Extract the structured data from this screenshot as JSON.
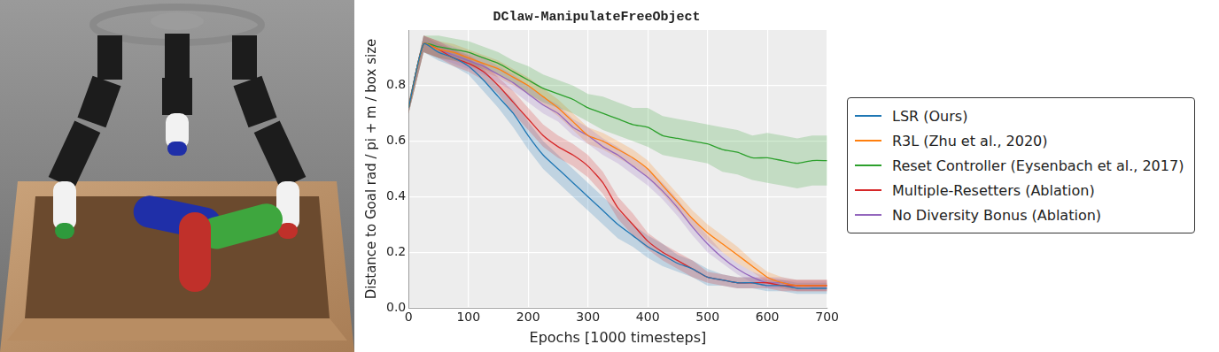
{
  "chart_data": {
    "type": "line",
    "title": "DClaw-ManipulateFreeObject",
    "x_label": "Epochs [1000 timesteps]",
    "y_label": "Distance to Goal rad / pi + m / box size",
    "x": [
      0,
      25,
      50,
      75,
      100,
      125,
      150,
      175,
      200,
      225,
      250,
      275,
      300,
      325,
      350,
      375,
      400,
      425,
      450,
      475,
      500,
      525,
      550,
      575,
      600,
      625,
      650,
      675,
      700
    ],
    "xlim": [
      0,
      700
    ],
    "xticks": [
      0,
      100,
      200,
      300,
      400,
      500,
      600,
      700
    ],
    "ylim": [
      0,
      1.0
    ],
    "yticks": [
      {
        "value": 0,
        "label": "0.0"
      },
      {
        "value": 0.2,
        "label": "0.2"
      },
      {
        "value": 0.4,
        "label": "0.4"
      },
      {
        "value": 0.6,
        "label": "0.6"
      },
      {
        "value": 0.8,
        "label": "0.8"
      }
    ],
    "grid": true,
    "legend": "right",
    "series": [
      {
        "name": "LSR (Ours)",
        "color": "#1f77b4",
        "values": [
          0.72,
          0.95,
          0.92,
          0.9,
          0.87,
          0.82,
          0.76,
          0.7,
          0.62,
          0.55,
          0.5,
          0.45,
          0.4,
          0.35,
          0.3,
          0.26,
          0.22,
          0.19,
          0.16,
          0.14,
          0.11,
          0.1,
          0.09,
          0.09,
          0.08,
          0.08,
          0.07,
          0.07,
          0.07
        ],
        "error": [
          0.02,
          0.03,
          0.03,
          0.03,
          0.03,
          0.04,
          0.04,
          0.05,
          0.05,
          0.05,
          0.05,
          0.05,
          0.05,
          0.05,
          0.05,
          0.04,
          0.04,
          0.04,
          0.03,
          0.03,
          0.03,
          0.02,
          0.02,
          0.02,
          0.02,
          0.02,
          0.02,
          0.02,
          0.02
        ]
      },
      {
        "name": "R3L (Zhu et al., 2020)",
        "color": "#ff7f0e",
        "values": [
          0.72,
          0.95,
          0.93,
          0.92,
          0.9,
          0.88,
          0.86,
          0.83,
          0.8,
          0.76,
          0.72,
          0.67,
          0.62,
          0.6,
          0.57,
          0.54,
          0.5,
          0.44,
          0.38,
          0.32,
          0.27,
          0.23,
          0.19,
          0.15,
          0.11,
          0.09,
          0.08,
          0.08,
          0.08
        ],
        "error": [
          0.02,
          0.03,
          0.03,
          0.03,
          0.03,
          0.03,
          0.03,
          0.03,
          0.03,
          0.03,
          0.03,
          0.03,
          0.03,
          0.03,
          0.03,
          0.03,
          0.03,
          0.03,
          0.03,
          0.03,
          0.03,
          0.03,
          0.03,
          0.02,
          0.02,
          0.02,
          0.02,
          0.02,
          0.02
        ]
      },
      {
        "name": "Reset Controller (Eysenbach et al., 2017)",
        "color": "#2ca02c",
        "values": [
          0.72,
          0.95,
          0.94,
          0.93,
          0.92,
          0.9,
          0.88,
          0.85,
          0.82,
          0.79,
          0.77,
          0.75,
          0.72,
          0.7,
          0.68,
          0.66,
          0.65,
          0.62,
          0.61,
          0.6,
          0.59,
          0.57,
          0.56,
          0.54,
          0.54,
          0.53,
          0.52,
          0.53,
          0.53
        ],
        "error": [
          0.02,
          0.03,
          0.04,
          0.04,
          0.04,
          0.04,
          0.04,
          0.04,
          0.05,
          0.05,
          0.05,
          0.05,
          0.05,
          0.06,
          0.06,
          0.06,
          0.07,
          0.07,
          0.07,
          0.07,
          0.07,
          0.08,
          0.08,
          0.08,
          0.09,
          0.09,
          0.09,
          0.09,
          0.09
        ]
      },
      {
        "name": "Multiple-Resetters (Ablation)",
        "color": "#d62728",
        "values": [
          0.72,
          0.95,
          0.93,
          0.9,
          0.88,
          0.85,
          0.8,
          0.74,
          0.68,
          0.62,
          0.58,
          0.55,
          0.51,
          0.45,
          0.36,
          0.3,
          0.24,
          0.2,
          0.17,
          0.14,
          0.11,
          0.1,
          0.09,
          0.09,
          0.09,
          0.08,
          0.08,
          0.08,
          0.08
        ],
        "error": [
          0.02,
          0.03,
          0.03,
          0.03,
          0.03,
          0.03,
          0.03,
          0.04,
          0.04,
          0.04,
          0.04,
          0.04,
          0.04,
          0.04,
          0.04,
          0.04,
          0.03,
          0.03,
          0.03,
          0.03,
          0.02,
          0.02,
          0.02,
          0.02,
          0.02,
          0.02,
          0.02,
          0.02,
          0.02
        ]
      },
      {
        "name": "No Diversity Bonus (Ablation)",
        "color": "#9467bd",
        "values": [
          0.72,
          0.95,
          0.93,
          0.91,
          0.89,
          0.87,
          0.84,
          0.81,
          0.77,
          0.73,
          0.7,
          0.65,
          0.62,
          0.58,
          0.55,
          0.51,
          0.47,
          0.42,
          0.36,
          0.29,
          0.23,
          0.18,
          0.14,
          0.11,
          0.09,
          0.09,
          0.08,
          0.08,
          0.08
        ],
        "error": [
          0.02,
          0.03,
          0.03,
          0.03,
          0.03,
          0.03,
          0.03,
          0.03,
          0.03,
          0.03,
          0.03,
          0.03,
          0.03,
          0.03,
          0.03,
          0.03,
          0.03,
          0.03,
          0.03,
          0.03,
          0.03,
          0.02,
          0.02,
          0.02,
          0.02,
          0.02,
          0.02,
          0.02,
          0.02
        ]
      }
    ]
  }
}
